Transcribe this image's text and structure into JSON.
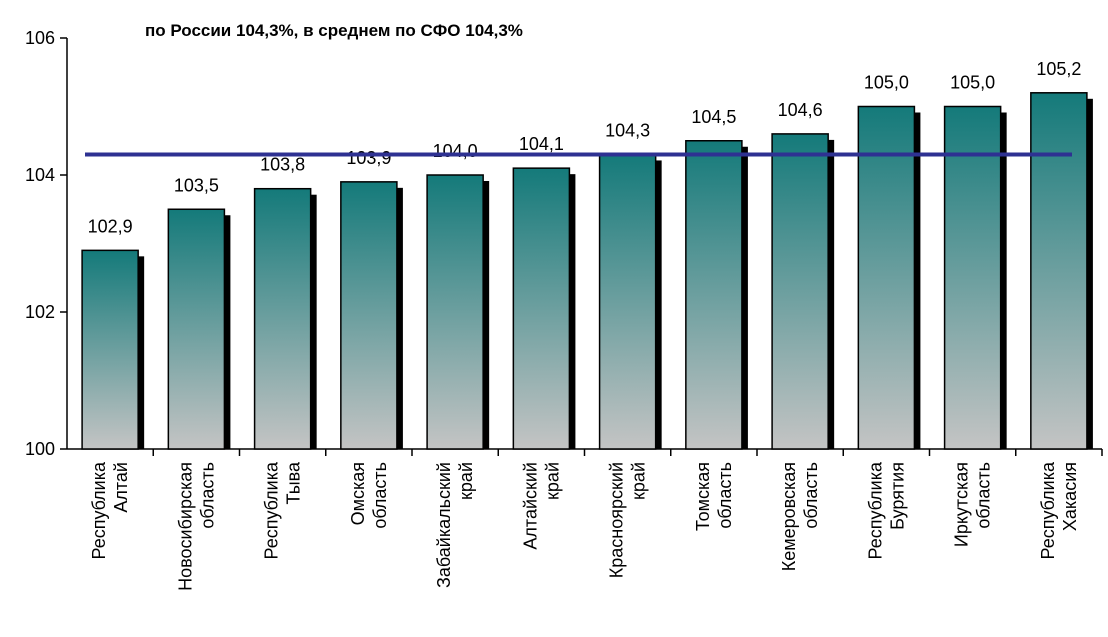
{
  "chart_data": {
    "type": "bar",
    "title": "по России 104,3%,  в среднем по СФО 104,3%",
    "categories": [
      [
        "Республика",
        "Алтай"
      ],
      [
        "Новосибирская",
        "область"
      ],
      [
        "Республика",
        "Тыва"
      ],
      [
        "Омская",
        "область"
      ],
      [
        "Забайкальский",
        "край"
      ],
      [
        "Алтайский",
        "край"
      ],
      [
        "Красноярский",
        "край"
      ],
      [
        "Томская",
        "область"
      ],
      [
        "Кемеровская",
        "область"
      ],
      [
        "Республика",
        "Бурятия"
      ],
      [
        "Иркутская",
        "область"
      ],
      [
        "Республика",
        "Хакасия"
      ]
    ],
    "values": [
      102.9,
      103.5,
      103.8,
      103.9,
      104.0,
      104.1,
      104.3,
      104.5,
      104.6,
      105.0,
      105.0,
      105.2
    ],
    "value_labels": [
      "102,9",
      "103,5",
      "103,8",
      "103,9",
      "104,0",
      "104,1",
      "104,3",
      "104,5",
      "104,6",
      "105,0",
      "105,0",
      "105,2"
    ],
    "color_top": "#147a7a",
    "color_bottom": "#c4c4c4",
    "reference_line": {
      "value": 104.3,
      "color": "#2e3192"
    },
    "ylim": [
      100,
      106
    ],
    "yticks": [
      100,
      102,
      104,
      106
    ]
  }
}
